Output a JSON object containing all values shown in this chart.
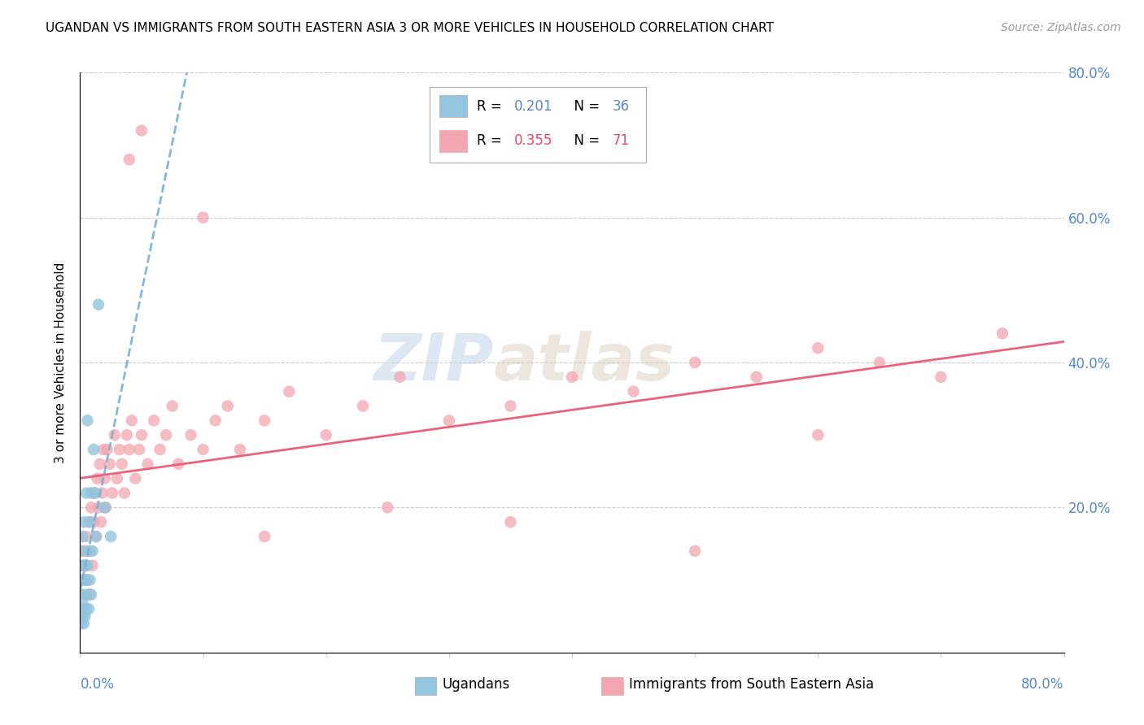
{
  "title": "UGANDAN VS IMMIGRANTS FROM SOUTH EASTERN ASIA 3 OR MORE VEHICLES IN HOUSEHOLD CORRELATION CHART",
  "source": "Source: ZipAtlas.com",
  "ylabel": "3 or more Vehicles in Household",
  "ugandan_color": "#92C5DE",
  "sea_color": "#F4A6B0",
  "ugandan_line_color": "#7aafd4",
  "sea_line_color": "#E8637A",
  "watermark": "ZIPatlas",
  "xmin": 0.0,
  "xmax": 0.8,
  "ymin": 0.0,
  "ymax": 0.8,
  "ugandan_x": [
    0.0,
    0.0,
    0.0,
    0.001,
    0.001,
    0.001,
    0.001,
    0.002,
    0.002,
    0.002,
    0.002,
    0.003,
    0.003,
    0.003,
    0.003,
    0.004,
    0.004,
    0.005,
    0.005,
    0.005,
    0.006,
    0.006,
    0.006,
    0.007,
    0.007,
    0.008,
    0.008,
    0.009,
    0.009,
    0.01,
    0.011,
    0.012,
    0.013,
    0.015,
    0.02,
    0.025
  ],
  "ugandan_y": [
    0.05,
    0.08,
    0.12,
    0.04,
    0.06,
    0.1,
    0.14,
    0.05,
    0.07,
    0.12,
    0.16,
    0.04,
    0.06,
    0.1,
    0.18,
    0.05,
    0.12,
    0.06,
    0.1,
    0.22,
    0.08,
    0.12,
    0.32,
    0.06,
    0.14,
    0.1,
    0.18,
    0.08,
    0.22,
    0.14,
    0.28,
    0.22,
    0.16,
    0.48,
    0.2,
    0.16
  ],
  "sea_x": [
    0.0,
    0.001,
    0.002,
    0.003,
    0.004,
    0.005,
    0.006,
    0.007,
    0.008,
    0.008,
    0.009,
    0.01,
    0.011,
    0.012,
    0.013,
    0.014,
    0.015,
    0.016,
    0.017,
    0.018,
    0.019,
    0.02,
    0.021,
    0.022,
    0.024,
    0.026,
    0.028,
    0.03,
    0.032,
    0.034,
    0.036,
    0.038,
    0.04,
    0.042,
    0.045,
    0.048,
    0.05,
    0.055,
    0.06,
    0.065,
    0.07,
    0.075,
    0.08,
    0.09,
    0.1,
    0.11,
    0.12,
    0.13,
    0.15,
    0.17,
    0.2,
    0.23,
    0.26,
    0.3,
    0.35,
    0.4,
    0.45,
    0.5,
    0.55,
    0.6,
    0.65,
    0.7,
    0.75,
    0.04,
    0.05,
    0.1,
    0.15,
    0.25,
    0.35,
    0.5,
    0.6
  ],
  "sea_y": [
    0.06,
    0.1,
    0.08,
    0.12,
    0.14,
    0.16,
    0.1,
    0.18,
    0.08,
    0.14,
    0.2,
    0.12,
    0.18,
    0.22,
    0.16,
    0.24,
    0.2,
    0.26,
    0.18,
    0.22,
    0.28,
    0.24,
    0.2,
    0.28,
    0.26,
    0.22,
    0.3,
    0.24,
    0.28,
    0.26,
    0.22,
    0.3,
    0.28,
    0.32,
    0.24,
    0.28,
    0.3,
    0.26,
    0.32,
    0.28,
    0.3,
    0.34,
    0.26,
    0.3,
    0.28,
    0.32,
    0.34,
    0.28,
    0.32,
    0.36,
    0.3,
    0.34,
    0.38,
    0.32,
    0.34,
    0.38,
    0.36,
    0.4,
    0.38,
    0.42,
    0.4,
    0.38,
    0.44,
    0.68,
    0.72,
    0.6,
    0.16,
    0.2,
    0.18,
    0.14,
    0.3
  ],
  "r_ugandan": "0.201",
  "n_ugandan": "36",
  "r_sea": "0.355",
  "n_sea": "71"
}
